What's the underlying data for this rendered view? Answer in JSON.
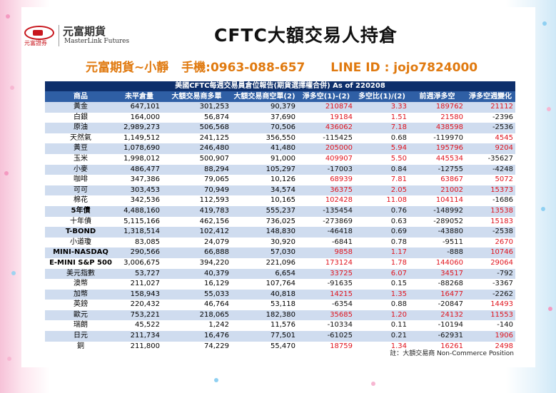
{
  "logo": {
    "company_short": "元富證券",
    "company_name": "元富期貨",
    "company_en": "MasterLink Futures"
  },
  "title": "CFTC大額交易人持倉",
  "contact": {
    "name": "元富期貨~小靜",
    "phone": "手機:0963-088-657",
    "line": "LINE ID : jojo7824000"
  },
  "table": {
    "banner": "美國CFTC每週交易員倉位報告(期貨選擇權合併) As of  220208",
    "headers": [
      "商品",
      "未平倉量",
      "大額交易商多單",
      "大額交易商空單(2)",
      "淨多空(1)-(2)",
      "多空比(1)/(2)",
      "前週淨多空",
      "淨多空週變化"
    ],
    "rows": [
      {
        "name": "黃金",
        "oi": "647,101",
        "long": "301,253",
        "short": "90,379",
        "net": "210874",
        "ratio": "3.33",
        "prev": "189762",
        "chg": "21112"
      },
      {
        "name": "白銀",
        "oi": "164,000",
        "long": "56,874",
        "short": "37,690",
        "net": "19184",
        "ratio": "1.51",
        "prev": "21580",
        "chg": "-2396"
      },
      {
        "name": "原油",
        "oi": "2,989,273",
        "long": "506,568",
        "short": "70,506",
        "net": "436062",
        "ratio": "7.18",
        "prev": "438598",
        "chg": "-2536"
      },
      {
        "name": "天然氣",
        "oi": "1,149,512",
        "long": "241,125",
        "short": "356,550",
        "net": "-115425",
        "ratio": "0.68",
        "prev": "-119970",
        "chg": "4545"
      },
      {
        "name": "黃豆",
        "oi": "1,078,690",
        "long": "246,480",
        "short": "41,480",
        "net": "205000",
        "ratio": "5.94",
        "prev": "195796",
        "chg": "9204"
      },
      {
        "name": "玉米",
        "oi": "1,998,012",
        "long": "500,907",
        "short": "91,000",
        "net": "409907",
        "ratio": "5.50",
        "prev": "445534",
        "chg": "-35627"
      },
      {
        "name": "小麥",
        "oi": "486,477",
        "long": "88,294",
        "short": "105,297",
        "net": "-17003",
        "ratio": "0.84",
        "prev": "-12755",
        "chg": "-4248"
      },
      {
        "name": "咖啡",
        "oi": "347,386",
        "long": "79,065",
        "short": "10,126",
        "net": "68939",
        "ratio": "7.81",
        "prev": "63867",
        "chg": "5072"
      },
      {
        "name": "可可",
        "oi": "303,453",
        "long": "70,949",
        "short": "34,574",
        "net": "36375",
        "ratio": "2.05",
        "prev": "21002",
        "chg": "15373"
      },
      {
        "name": "棉花",
        "oi": "342,536",
        "long": "112,593",
        "short": "10,165",
        "net": "102428",
        "ratio": "11.08",
        "prev": "104114",
        "chg": "-1686"
      },
      {
        "name": "5年債",
        "oi": "4,488,160",
        "long": "419,783",
        "short": "555,237",
        "net": "-135454",
        "ratio": "0.76",
        "prev": "-148992",
        "chg": "13538"
      },
      {
        "name": "十年債",
        "oi": "5,115,166",
        "long": "462,156",
        "short": "736,025",
        "net": "-273869",
        "ratio": "0.63",
        "prev": "-289052",
        "chg": "15183"
      },
      {
        "name": "T-BOND",
        "oi": "1,318,514",
        "long": "102,412",
        "short": "148,830",
        "net": "-46418",
        "ratio": "0.69",
        "prev": "-43880",
        "chg": "-2538"
      },
      {
        "name": "小道瓊",
        "oi": "83,085",
        "long": "24,079",
        "short": "30,920",
        "net": "-6841",
        "ratio": "0.78",
        "prev": "-9511",
        "chg": "2670"
      },
      {
        "name": "MINI-NASDAQ",
        "oi": "290,566",
        "long": "66,888",
        "short": "57,030",
        "net": "9858",
        "ratio": "1.17",
        "prev": "-888",
        "chg": "10746"
      },
      {
        "name": "E-MINI S&P 500",
        "oi": "3,006,675",
        "long": "394,220",
        "short": "221,096",
        "net": "173124",
        "ratio": "1.78",
        "prev": "144060",
        "chg": "29064"
      },
      {
        "name": "美元指數",
        "oi": "53,727",
        "long": "40,379",
        "short": "6,654",
        "net": "33725",
        "ratio": "6.07",
        "prev": "34517",
        "chg": "-792"
      },
      {
        "name": "澳幣",
        "oi": "211,027",
        "long": "16,129",
        "short": "107,764",
        "net": "-91635",
        "ratio": "0.15",
        "prev": "-88268",
        "chg": "-3367"
      },
      {
        "name": "加幣",
        "oi": "158,943",
        "long": "55,033",
        "short": "40,818",
        "net": "14215",
        "ratio": "1.35",
        "prev": "16477",
        "chg": "-2262"
      },
      {
        "name": "英鎊",
        "oi": "220,432",
        "long": "46,764",
        "short": "53,118",
        "net": "-6354",
        "ratio": "0.88",
        "prev": "-20847",
        "chg": "14493"
      },
      {
        "name": "歐元",
        "oi": "753,221",
        "long": "218,065",
        "short": "182,380",
        "net": "35685",
        "ratio": "1.20",
        "prev": "24132",
        "chg": "11553"
      },
      {
        "name": "瑞朗",
        "oi": "45,522",
        "long": "1,242",
        "short": "11,576",
        "net": "-10334",
        "ratio": "0.11",
        "prev": "-10194",
        "chg": "-140"
      },
      {
        "name": "日元",
        "oi": "211,734",
        "long": "16,476",
        "short": "77,501",
        "net": "-61025",
        "ratio": "0.21",
        "prev": "-62931",
        "chg": "1906"
      },
      {
        "name": "銅",
        "oi": "211,800",
        "long": "74,229",
        "short": "55,470",
        "net": "18759",
        "ratio": "1.34",
        "prev": "16261",
        "chg": "2498"
      }
    ],
    "note": "註：大額交易商 Non-Commerce Position"
  },
  "colors": {
    "banner_bg": "#0e2f6b",
    "header_bg": "#2f5fa5",
    "alt_row": "#cfdcef",
    "positive": "#e0141e",
    "title_contact": "#e07a10",
    "brand_red": "#c8161d"
  }
}
